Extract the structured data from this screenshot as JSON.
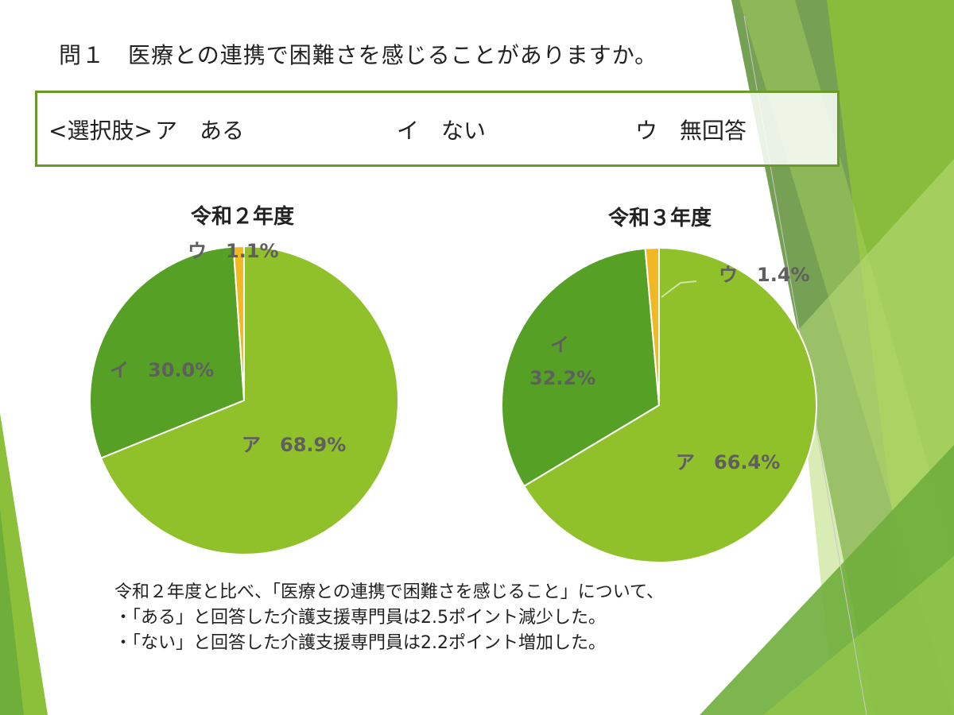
{
  "question": "問１　医療との連携で困難さを感じることがありますか。",
  "choices": {
    "prefix": "<選択肢>",
    "items": [
      "ア　ある",
      "イ　ない",
      "ウ　無回答"
    ]
  },
  "colors": {
    "slice_a": "#90c02a",
    "slice_i": "#56a125",
    "slice_u": "#f0b923",
    "box_border": "#6a9a2a",
    "label_text": "#5f5f5f"
  },
  "chart_data": [
    {
      "type": "pie",
      "title": "令和２年度",
      "slices": [
        {
          "label": "ア",
          "value": 68.9,
          "display": "68.9%"
        },
        {
          "label": "イ",
          "value": 30.0,
          "display": "30.0%"
        },
        {
          "label": "ウ",
          "value": 1.1,
          "display": "1.1%"
        }
      ]
    },
    {
      "type": "pie",
      "title": "令和３年度",
      "slices": [
        {
          "label": "ア",
          "value": 66.4,
          "display": "66.4%"
        },
        {
          "label": "イ",
          "value": 32.2,
          "display": "32.2%"
        },
        {
          "label": "ウ",
          "value": 1.4,
          "display": "1.4%"
        }
      ]
    }
  ],
  "summary": [
    "令和２年度と比べ、「医療との連携で困難さを感じること」について、",
    "・「ある」と回答した介護支援専門員は2.5ポイント減少した。",
    "・「ない」と回答した介護支援専門員は2.2ポイント増加した。"
  ]
}
